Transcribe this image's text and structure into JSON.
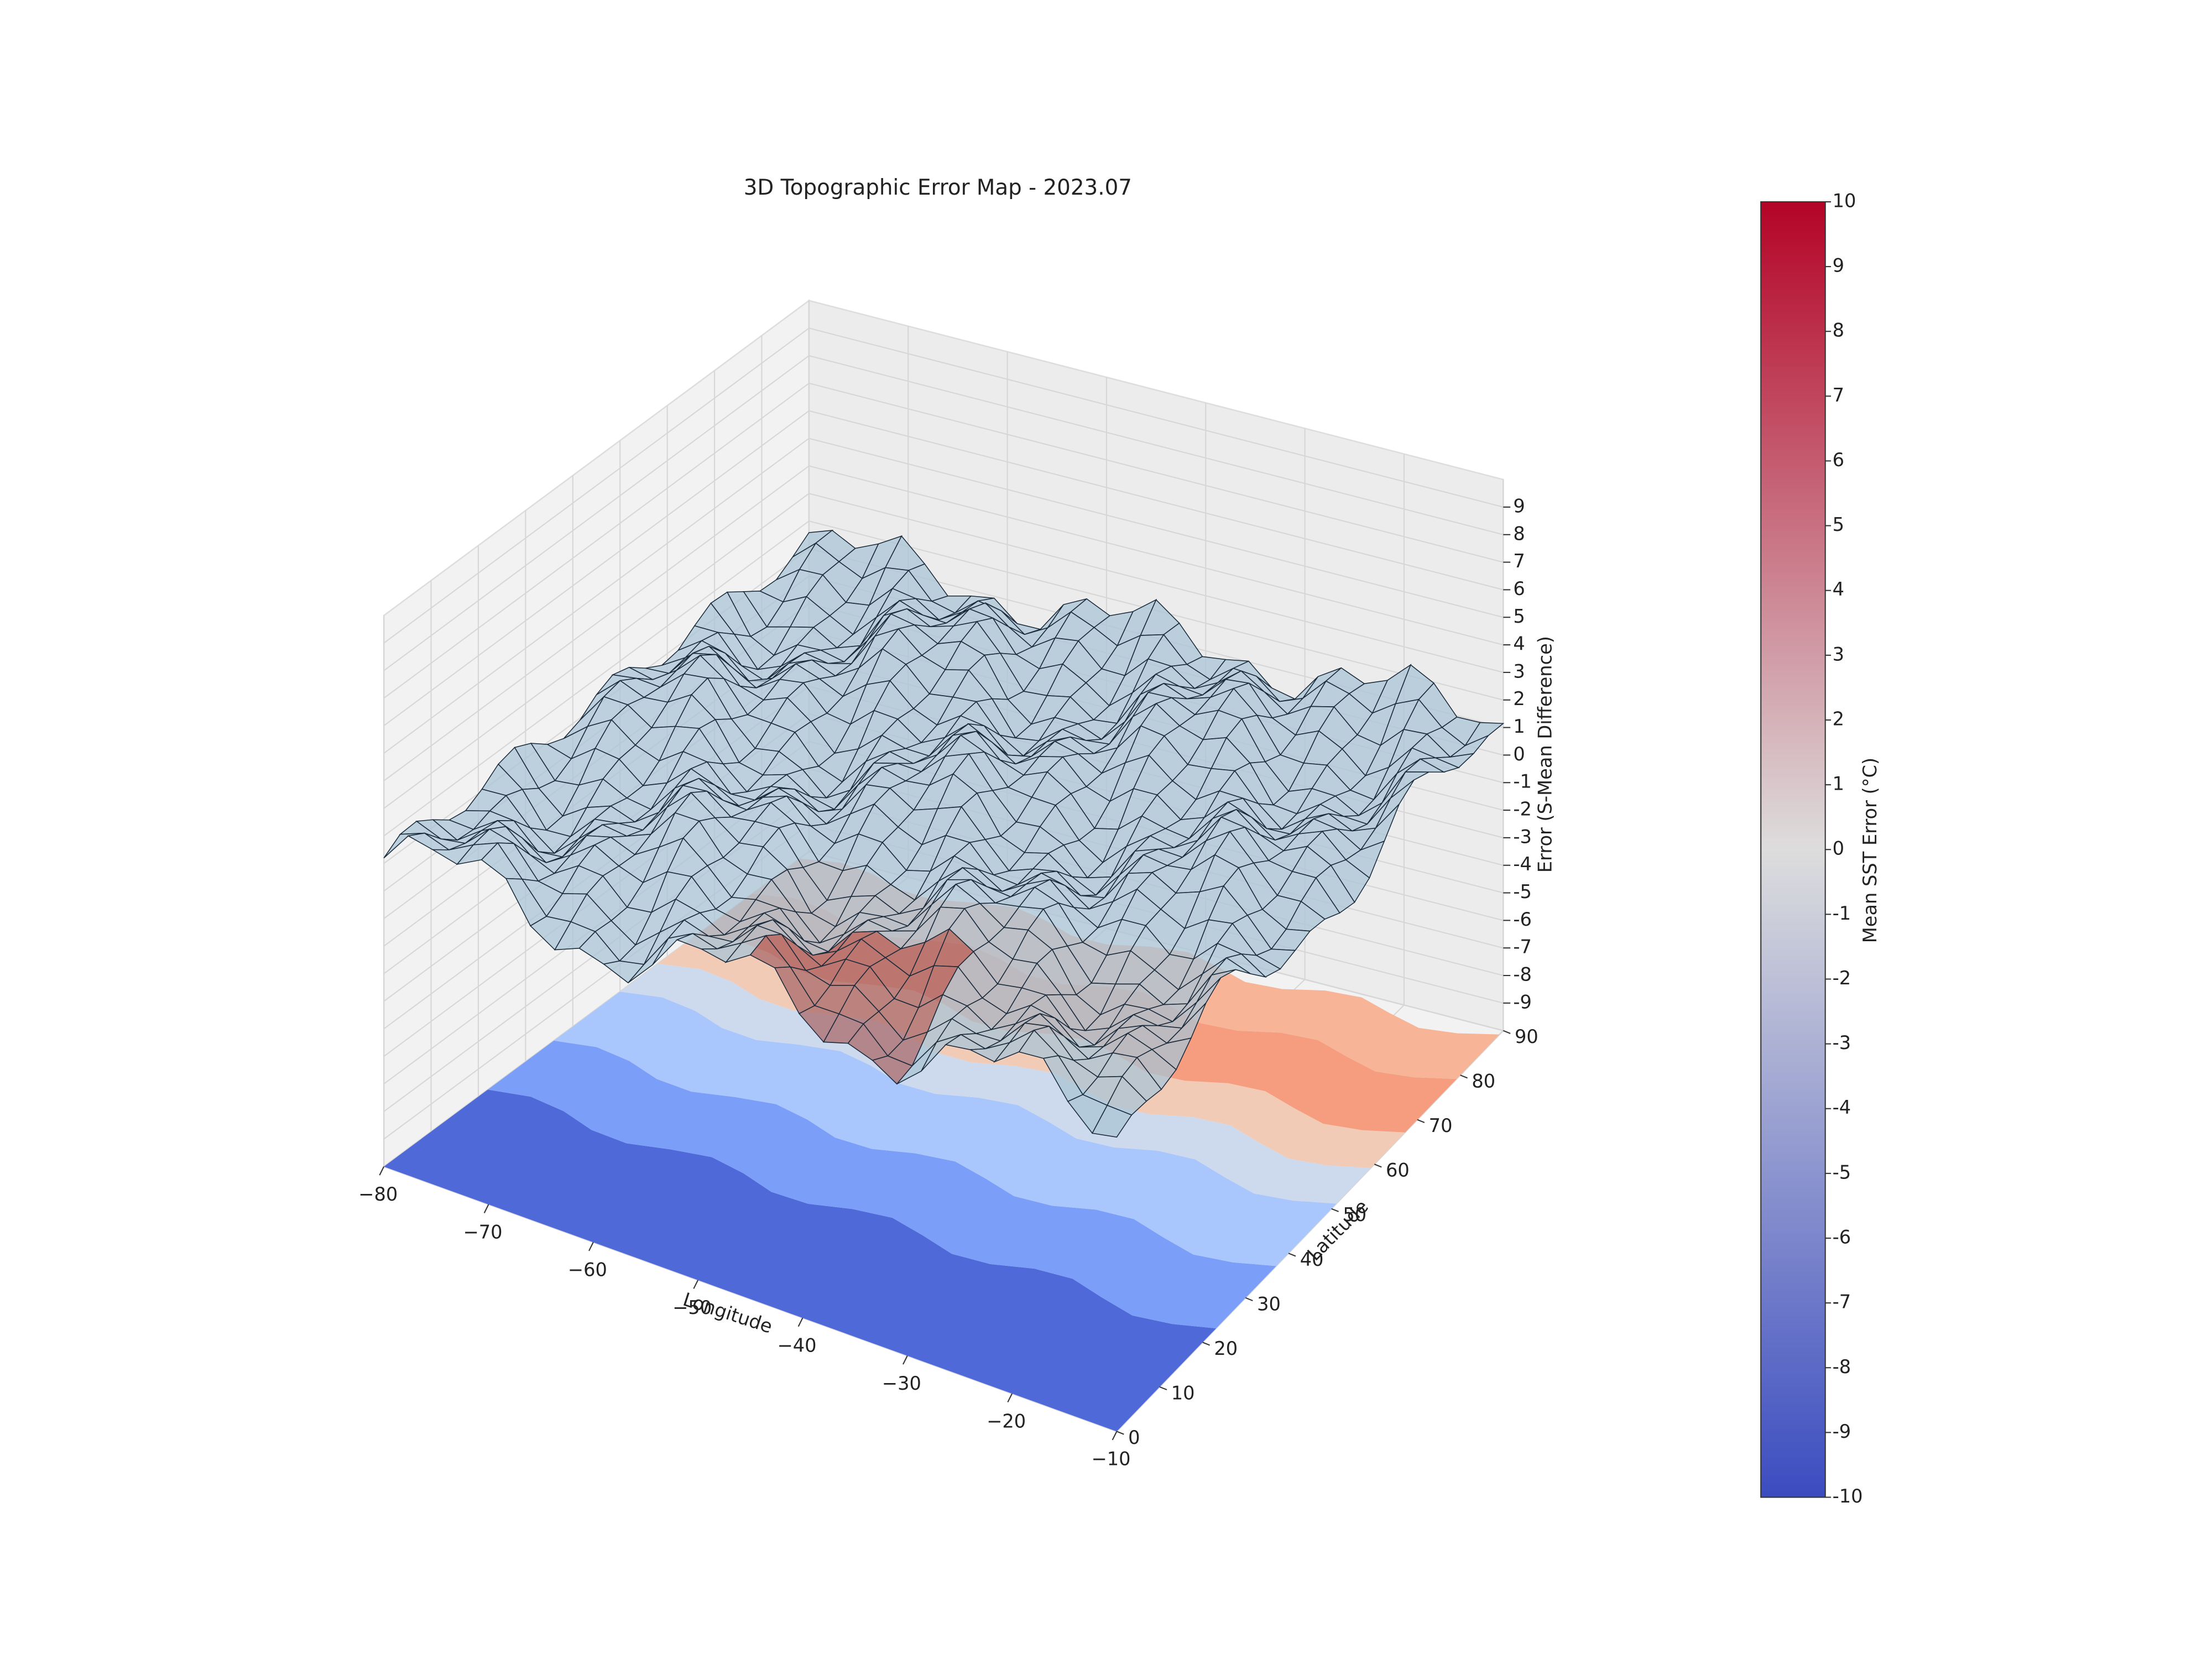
{
  "chart_data": {
    "type": "surface3d",
    "title": "3D Topographic Error Map - 2023.07",
    "xlabel": "Longitude",
    "ylabel": "Latitude",
    "zlabel": "Error (S-Mean Difference)",
    "xlim": [
      -80,
      -10
    ],
    "ylim": [
      0,
      90
    ],
    "zlim": [
      -10,
      10
    ],
    "xticks": [
      {
        "value": -80,
        "label": "−80"
      },
      {
        "value": -70,
        "label": "−70"
      },
      {
        "value": -60,
        "label": "−60"
      },
      {
        "value": -50,
        "label": "−50"
      },
      {
        "value": -40,
        "label": "−40"
      },
      {
        "value": -30,
        "label": "−30"
      },
      {
        "value": -20,
        "label": "−20"
      },
      {
        "value": -10,
        "label": "−10"
      }
    ],
    "yticks": [
      0,
      10,
      20,
      30,
      40,
      50,
      60,
      70,
      80,
      90
    ],
    "zticks": [
      -9,
      -8,
      -7,
      -6,
      -5,
      -4,
      -3,
      -2,
      -1,
      0,
      1,
      2,
      3,
      4,
      5,
      6,
      7,
      8,
      9
    ],
    "grid": true,
    "colorbar": {
      "label": "Mean SST Error (°C)",
      "lim": [
        -10,
        10
      ],
      "ticks": [
        -10,
        -9,
        -8,
        -7,
        -6,
        -5,
        -4,
        -3,
        -2,
        -1,
        0,
        1,
        2,
        3,
        4,
        5,
        6,
        7,
        8,
        9,
        10
      ],
      "colors": [
        "#3b4cc0",
        "#dddddd",
        "#b40426"
      ]
    }
  }
}
